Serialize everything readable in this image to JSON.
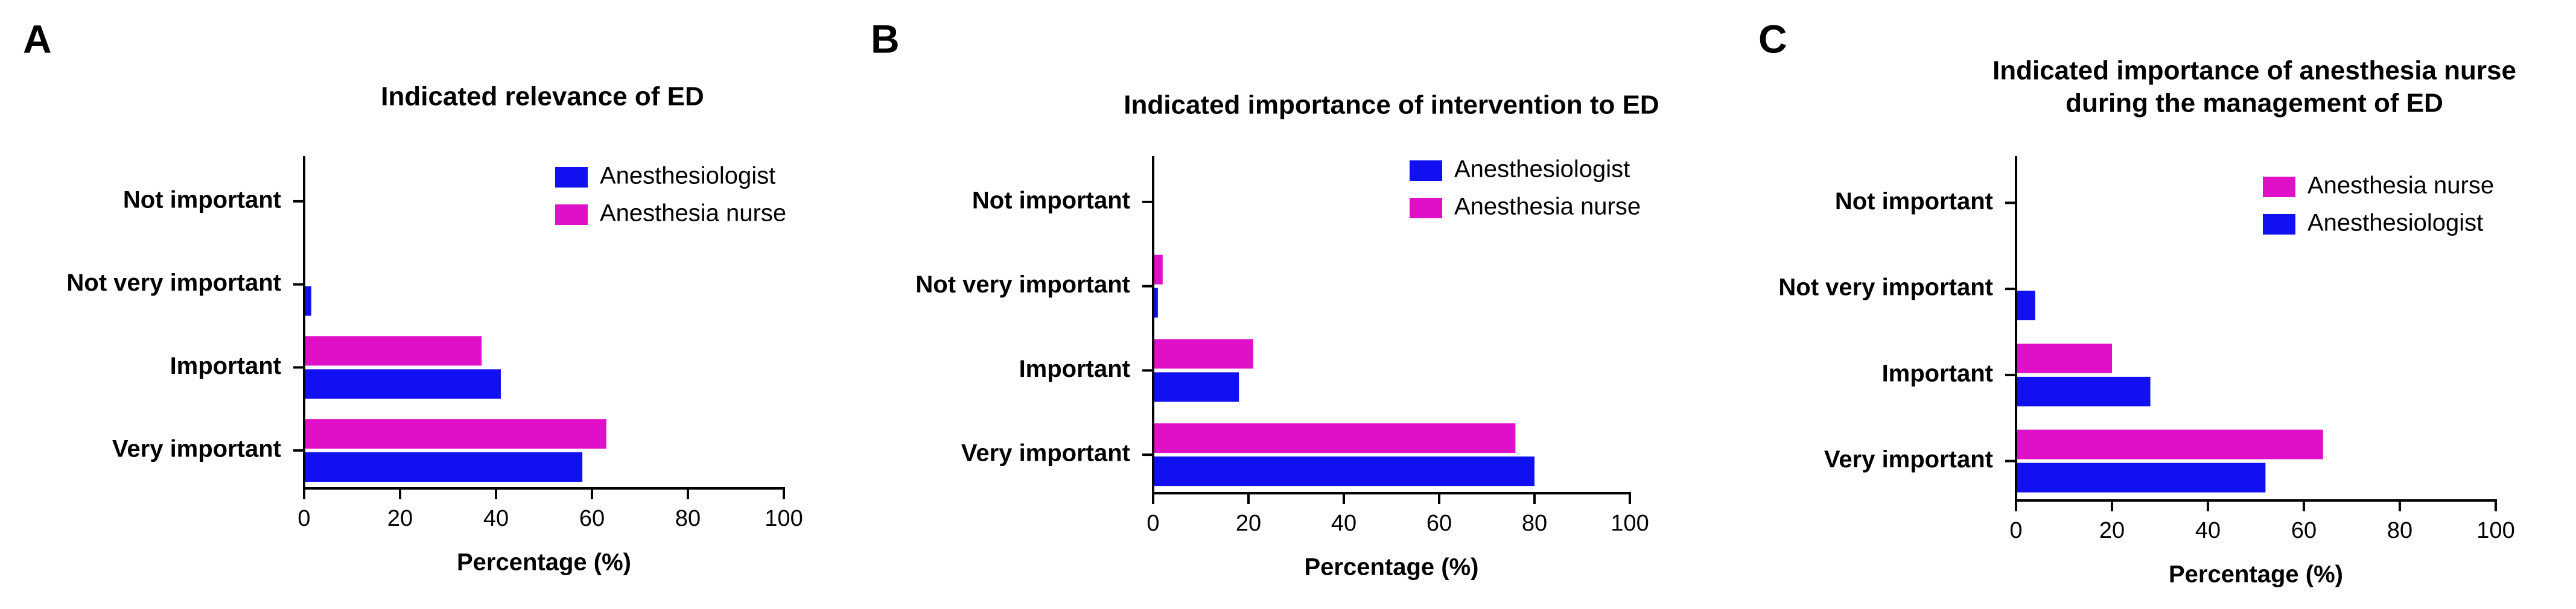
{
  "chart_data": [
    {
      "type": "barh",
      "panel_label": "A",
      "title": [
        "Indicated relevance of ED"
      ],
      "categories": [
        "Not important",
        "Not very important",
        "Important",
        "Very important"
      ],
      "series": [
        {
          "name": "Anesthesiologist",
          "color": "#1010f0",
          "values": [
            0,
            1.5,
            41,
            58
          ]
        },
        {
          "name": "Anesthesia nurse",
          "color": "#e010c8",
          "values": [
            0,
            0,
            37,
            63
          ]
        }
      ],
      "xlabel": "Percentage (%)",
      "xlim": [
        0,
        100
      ],
      "xticks": [
        0,
        20,
        40,
        60,
        80,
        100
      ]
    },
    {
      "type": "barh",
      "panel_label": "B",
      "title": [
        "Indicated importance of intervention to ED"
      ],
      "categories": [
        "Not important",
        "Not very important",
        "Important",
        "Very important"
      ],
      "series": [
        {
          "name": "Anesthesiologist",
          "color": "#1010f0",
          "values": [
            0,
            1,
            18,
            80
          ]
        },
        {
          "name": "Anesthesia nurse",
          "color": "#e010c8",
          "values": [
            0,
            2,
            21,
            76
          ]
        }
      ],
      "xlabel": "Percentage (%)",
      "xlim": [
        0,
        100
      ],
      "xticks": [
        0,
        20,
        40,
        60,
        80,
        100
      ]
    },
    {
      "type": "barh",
      "panel_label": "C",
      "title": [
        "Indicated importance of anesthesia nurse",
        "during the management of ED"
      ],
      "categories": [
        "Not important",
        "Not very important",
        "Important",
        "Very important"
      ],
      "series": [
        {
          "name": "Anesthesia nurse",
          "color": "#e010c8",
          "values": [
            0,
            0,
            20,
            64
          ]
        },
        {
          "name": "Anesthesiologist",
          "color": "#1010f0",
          "values": [
            0,
            4,
            28,
            52
          ]
        }
      ],
      "xlabel": "Percentage (%)",
      "xlim": [
        0,
        100
      ],
      "xticks": [
        0,
        20,
        40,
        60,
        80,
        100
      ]
    }
  ]
}
